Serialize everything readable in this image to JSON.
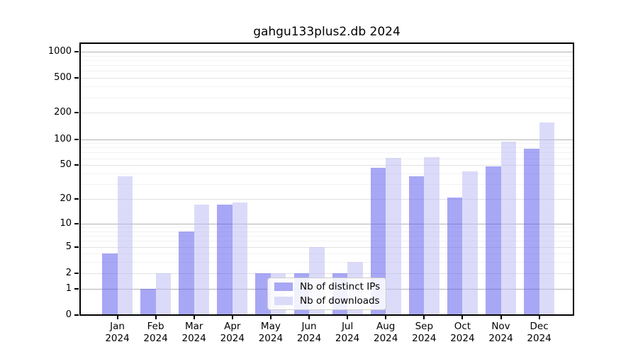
{
  "chart_data": {
    "type": "bar",
    "title": "gahgu133plus2.db 2024",
    "categories": [
      "Jan 2024",
      "Feb 2024",
      "Mar 2024",
      "Apr 2024",
      "May 2024",
      "Jun 2024",
      "Jul 2024",
      "Aug 2024",
      "Sep 2024",
      "Oct 2024",
      "Nov 2024",
      "Dec 2024"
    ],
    "x_labels": [
      {
        "month": "Jan",
        "year": "2024"
      },
      {
        "month": "Feb",
        "year": "2024"
      },
      {
        "month": "Mar",
        "year": "2024"
      },
      {
        "month": "Apr",
        "year": "2024"
      },
      {
        "month": "May",
        "year": "2024"
      },
      {
        "month": "Jun",
        "year": "2024"
      },
      {
        "month": "Jul",
        "year": "2024"
      },
      {
        "month": "Aug",
        "year": "2024"
      },
      {
        "month": "Sep",
        "year": "2024"
      },
      {
        "month": "Oct",
        "year": "2024"
      },
      {
        "month": "Nov",
        "year": "2024"
      },
      {
        "month": "Dec",
        "year": "2024"
      }
    ],
    "series": [
      {
        "name": "Nb of distinct IPs",
        "color": "#a7a7f5",
        "fill": "rgba(95,95,237,0.55)",
        "values": [
          4,
          1,
          8,
          17,
          2,
          2,
          2,
          47,
          37,
          21,
          48,
          78
        ]
      },
      {
        "name": "Nb of downloads",
        "color": "#dbdbf9",
        "fill": "rgba(190,190,244,0.55)",
        "values": [
          37,
          2,
          17,
          18,
          2,
          5,
          3,
          61,
          62,
          42,
          94,
          155
        ]
      }
    ],
    "yscale": "log1p",
    "ylim": [
      0,
      1000
    ],
    "yticks": [
      0,
      1,
      2,
      5,
      10,
      20,
      50,
      100,
      200,
      500,
      1000
    ],
    "ytick_labels": [
      "0",
      "1",
      "2",
      "5",
      "10",
      "20",
      "50",
      "100",
      "200",
      "500",
      "1000"
    ],
    "grid": true,
    "grid_colors": {
      "major": "#b3b3b3",
      "medium": "#e1e1e1",
      "minor": "#f2f2f2"
    },
    "grid_levels": {
      "major": [
        1,
        10,
        100,
        1000
      ],
      "medium": [
        2,
        5,
        20,
        50,
        200,
        500
      ],
      "minor": [
        3,
        4,
        6,
        7,
        8,
        9,
        30,
        40,
        60,
        70,
        80,
        90,
        300,
        400,
        600,
        700,
        800,
        900
      ]
    },
    "legend_position": "inside-bottom-center",
    "axis_color": "#000000"
  }
}
